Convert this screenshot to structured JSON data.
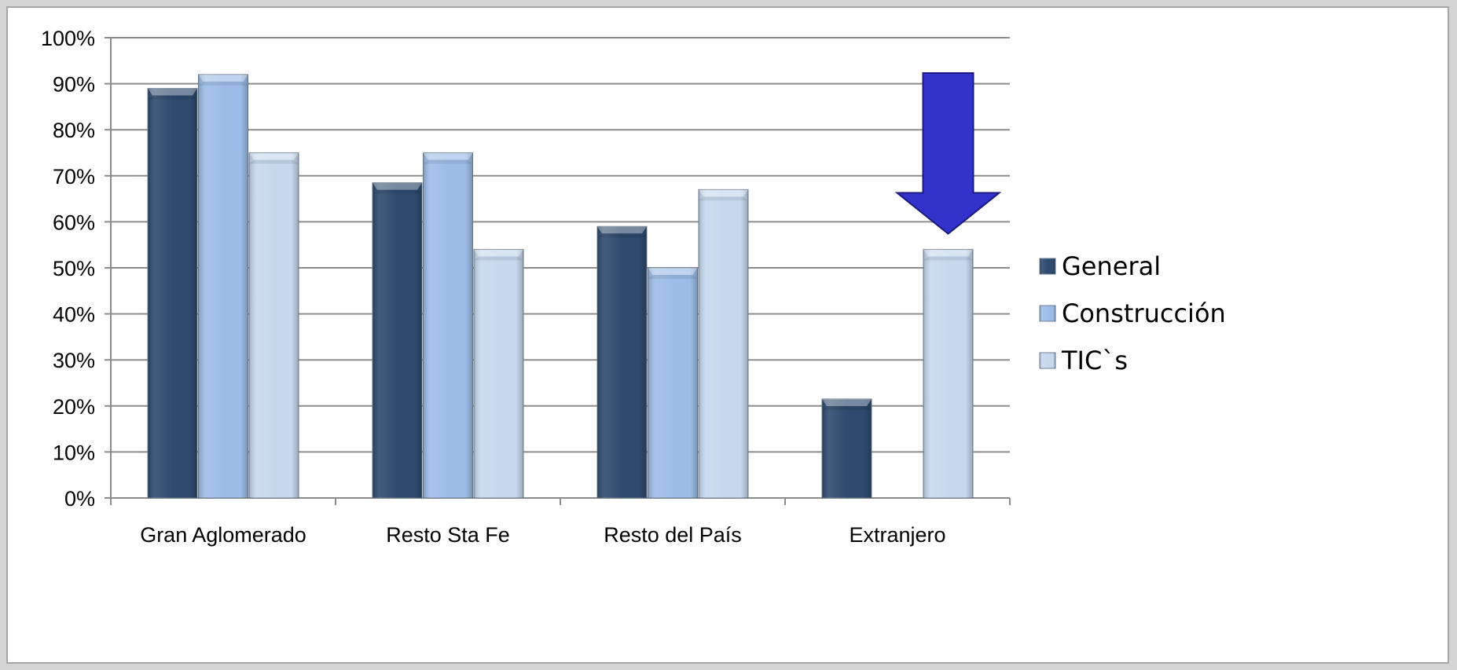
{
  "chart_data": {
    "type": "bar",
    "categories": [
      "Gran Aglomerado",
      "Resto Sta Fe",
      "Resto del País",
      "Extranjero"
    ],
    "series": [
      {
        "name": "General",
        "values": [
          89,
          68.5,
          59,
          21.5
        ],
        "color": "#2e4a6e"
      },
      {
        "name": "Construcción",
        "values": [
          92,
          75,
          50,
          0
        ],
        "color": "#9dbde8"
      },
      {
        "name": "TIC`s",
        "values": [
          75,
          54,
          67,
          54
        ],
        "color": "#c7d8ee"
      }
    ],
    "title": "",
    "xlabel": "",
    "ylabel": "",
    "ylim": [
      0,
      100
    ],
    "yticks": [
      "0%",
      "10%",
      "20%",
      "30%",
      "40%",
      "50%",
      "60%",
      "70%",
      "80%",
      "90%",
      "100%"
    ],
    "grid": true,
    "legend_position": "right",
    "annotation": {
      "type": "arrow-down",
      "target_category": "Extranjero",
      "color": "#3333cc"
    }
  }
}
